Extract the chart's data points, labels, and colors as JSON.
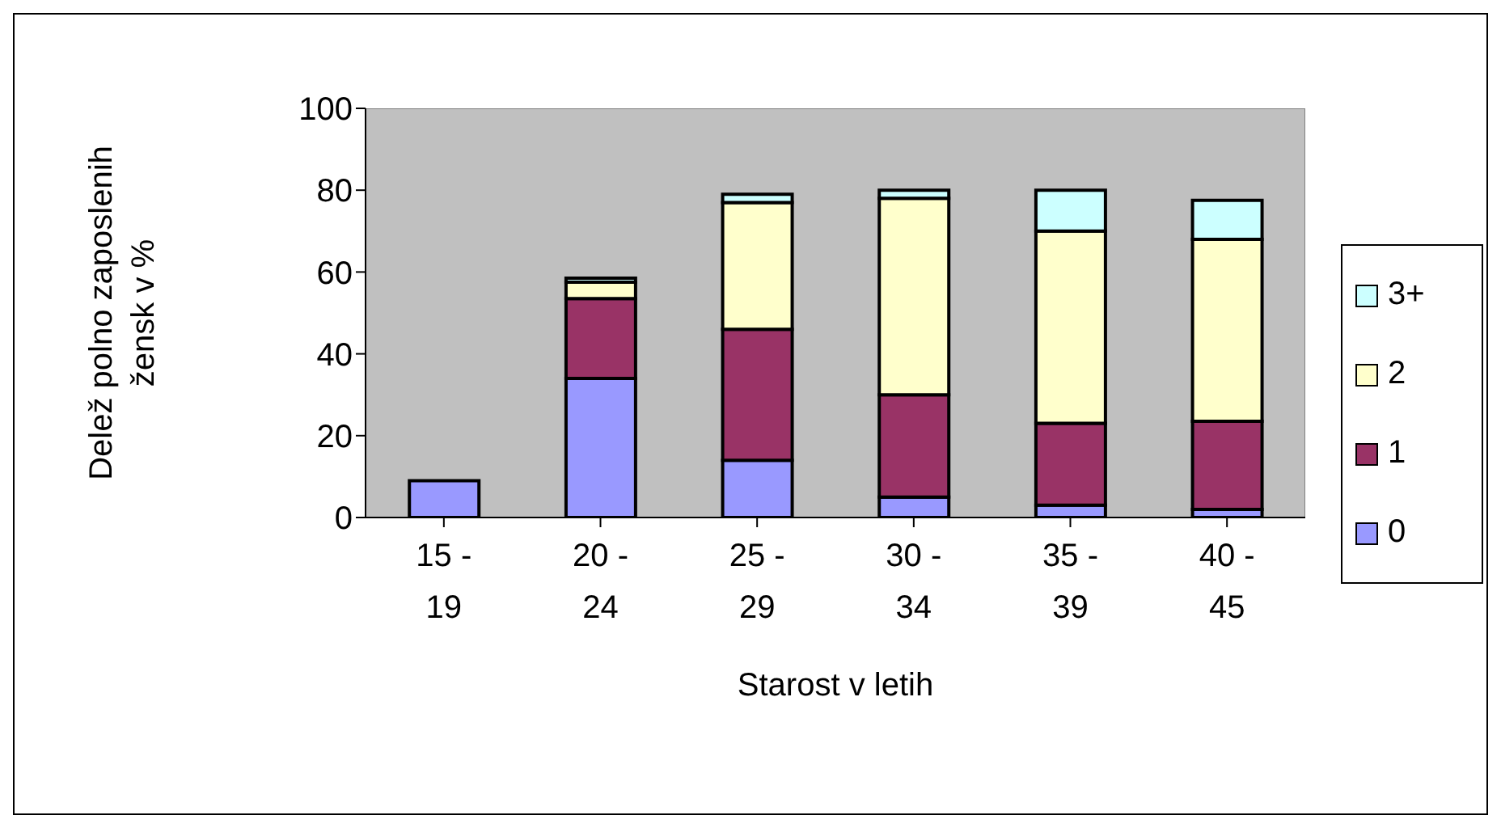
{
  "chart_data": {
    "type": "bar",
    "stacked": true,
    "xlabel": "Starost v letih",
    "ylabel": "Delež polno zaposlenih žensk v %",
    "categories": [
      "15 - 19",
      "20 - 24",
      "25 - 29",
      "30 - 34",
      "35 - 39",
      "40 - 45"
    ],
    "series": [
      {
        "name": "0",
        "color": "#9999ff",
        "values": [
          9,
          34,
          14,
          5,
          3,
          2
        ]
      },
      {
        "name": "1",
        "color": "#993366",
        "values": [
          null,
          19.5,
          32,
          25,
          20,
          21.5
        ]
      },
      {
        "name": "2",
        "color": "#ffffcc",
        "values": [
          null,
          4,
          31,
          48,
          47,
          44.5
        ]
      },
      {
        "name": "3+",
        "color": "#ccffff",
        "values": [
          null,
          1,
          2,
          2,
          10,
          9.5
        ]
      }
    ],
    "ylim": [
      0,
      100
    ],
    "yticks": [
      0,
      20,
      40,
      60,
      80,
      100
    ],
    "grid": false,
    "legend": "right"
  }
}
